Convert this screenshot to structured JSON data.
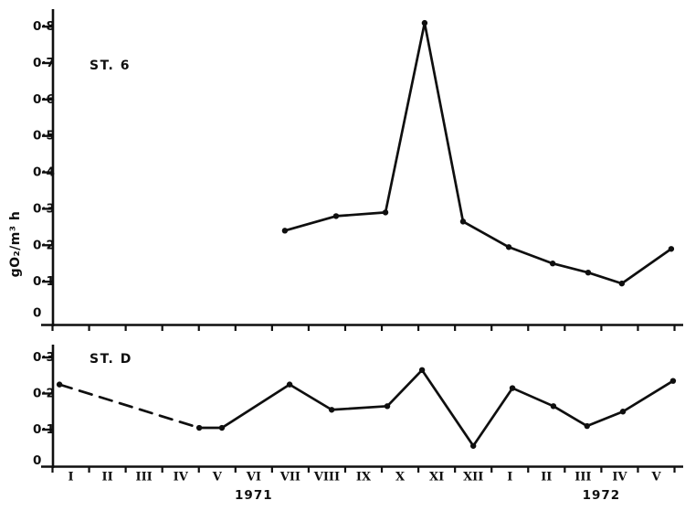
{
  "figure": {
    "background": "#ffffff",
    "ink": "#0f0f0f",
    "y_axis_title": "gO₂/m³ h",
    "x_axis": {
      "note": "shared month axis; m = month slot, 1 = I 1971 … 17 = V 1972",
      "month_tick_labels": [
        "I",
        "II",
        "III",
        "IV",
        "V",
        "VI",
        "VII",
        "VIII",
        "IX",
        "X",
        "XI",
        "XII",
        "I",
        "II",
        "III",
        "IV",
        "V"
      ],
      "years": [
        {
          "label": "1971",
          "m": 6.0
        },
        {
          "label": "1972",
          "m": 15.5
        }
      ]
    }
  },
  "chart_data": [
    {
      "type": "line",
      "title": "ST. 6",
      "ylabel": "gO₂/m³ h",
      "x_range": [
        "I 1971",
        "V 1972"
      ],
      "ylim": [
        0,
        0.85
      ],
      "grid": false,
      "legend": "none",
      "marker": "filled-circle",
      "yticks": [
        {
          "value": 0.8,
          "label": "0·8"
        },
        {
          "value": 0.7,
          "label": "0·7"
        },
        {
          "value": 0.6,
          "label": "0·6"
        },
        {
          "value": 0.5,
          "label": "0·5"
        },
        {
          "value": 0.4,
          "label": "0·4"
        },
        {
          "value": 0.3,
          "label": "0·3"
        },
        {
          "value": 0.2,
          "label": "0·2"
        },
        {
          "value": 0.1,
          "label": "0·1"
        },
        {
          "value": 0,
          "label": "0"
        }
      ],
      "dashed_segment_indices": [],
      "points": [
        {
          "m": 6.85,
          "value": 0.24
        },
        {
          "m": 8.25,
          "value": 0.28
        },
        {
          "m": 9.6,
          "value": 0.29
        },
        {
          "m": 10.67,
          "value": 0.81
        },
        {
          "m": 11.72,
          "value": 0.265
        },
        {
          "m": 12.97,
          "value": 0.195
        },
        {
          "m": 14.17,
          "value": 0.15
        },
        {
          "m": 15.14,
          "value": 0.125
        },
        {
          "m": 16.06,
          "value": 0.095
        },
        {
          "m": 17.41,
          "value": 0.19
        }
      ]
    },
    {
      "type": "line",
      "title": "ST. D",
      "ylabel": "gO₂/m³ h",
      "x_range": [
        "I 1971",
        "V 1972"
      ],
      "ylim": [
        0,
        0.32
      ],
      "grid": false,
      "legend": "none",
      "marker": "filled-circle",
      "yticks": [
        {
          "value": 0.3,
          "label": "0·3"
        },
        {
          "value": 0.2,
          "label": "0·2"
        },
        {
          "value": 0.1,
          "label": "0·1"
        },
        {
          "value": 0,
          "label": "0"
        }
      ],
      "dashed_segment_indices": [
        0
      ],
      "points": [
        {
          "m": 0.69,
          "value": 0.225
        },
        {
          "m": 4.51,
          "value": 0.105
        },
        {
          "m": 5.13,
          "value": 0.105
        },
        {
          "m": 6.98,
          "value": 0.225
        },
        {
          "m": 8.13,
          "value": 0.155
        },
        {
          "m": 9.65,
          "value": 0.165
        },
        {
          "m": 10.6,
          "value": 0.265
        },
        {
          "m": 12.0,
          "value": 0.055
        },
        {
          "m": 13.07,
          "value": 0.215
        },
        {
          "m": 14.19,
          "value": 0.165
        },
        {
          "m": 15.11,
          "value": 0.11
        },
        {
          "m": 16.09,
          "value": 0.15
        },
        {
          "m": 17.46,
          "value": 0.235
        }
      ]
    }
  ]
}
